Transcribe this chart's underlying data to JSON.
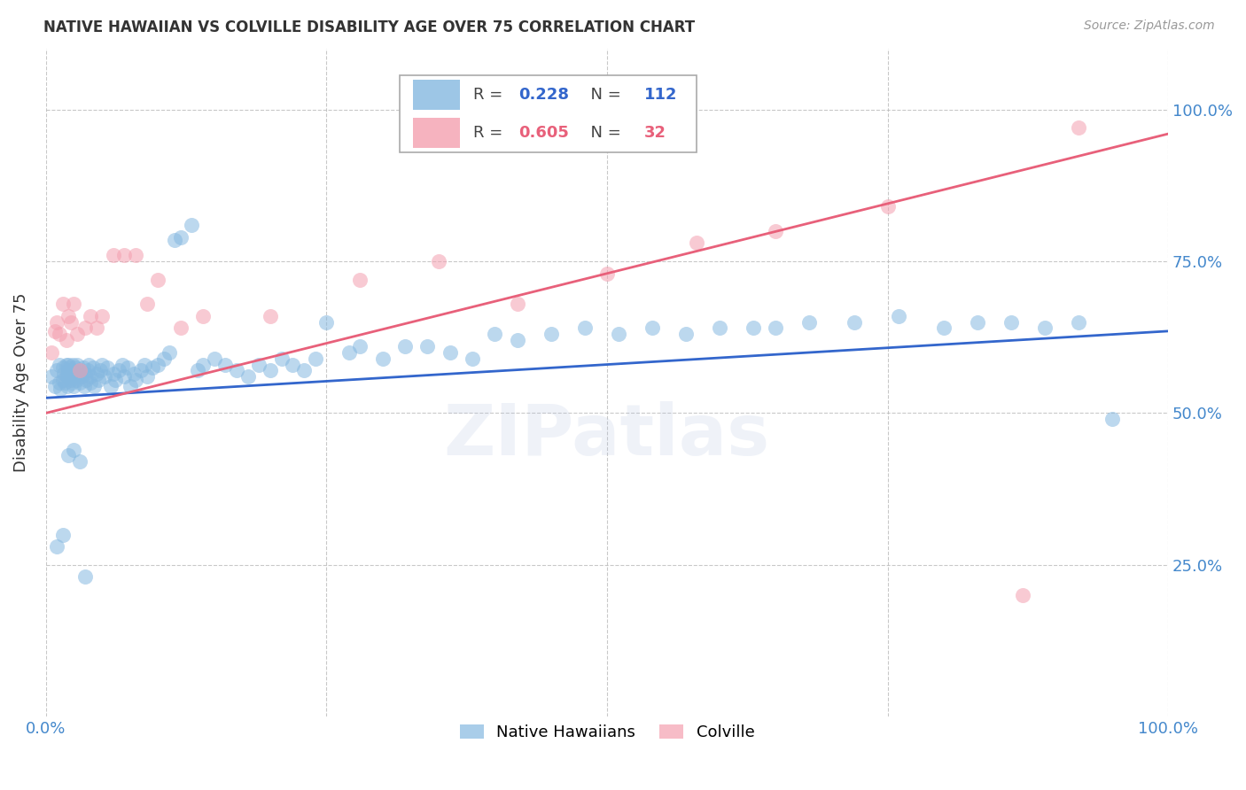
{
  "title": "NATIVE HAWAIIAN VS COLVILLE DISABILITY AGE OVER 75 CORRELATION CHART",
  "source": "Source: ZipAtlas.com",
  "ylabel": "Disability Age Over 75",
  "right_yticks": [
    "100.0%",
    "75.0%",
    "50.0%",
    "25.0%"
  ],
  "right_ytick_vals": [
    1.0,
    0.75,
    0.5,
    0.25
  ],
  "watermark": "ZIPatlas",
  "blue_R": 0.228,
  "blue_N": 112,
  "pink_R": 0.605,
  "pink_N": 32,
  "blue_color": "#85b8e0",
  "pink_color": "#f4a0b0",
  "blue_line_color": "#3366cc",
  "pink_line_color": "#e8607a",
  "title_color": "#333333",
  "axis_label_color": "#4488cc",
  "grid_color": "#bbbbbb",
  "background_color": "#ffffff",
  "blue_scatter_x": [
    0.005,
    0.008,
    0.01,
    0.012,
    0.012,
    0.013,
    0.015,
    0.015,
    0.016,
    0.017,
    0.018,
    0.018,
    0.019,
    0.02,
    0.02,
    0.02,
    0.021,
    0.022,
    0.022,
    0.023,
    0.023,
    0.024,
    0.025,
    0.025,
    0.026,
    0.027,
    0.028,
    0.028,
    0.03,
    0.03,
    0.032,
    0.033,
    0.034,
    0.035,
    0.036,
    0.037,
    0.038,
    0.04,
    0.04,
    0.042,
    0.043,
    0.045,
    0.047,
    0.048,
    0.05,
    0.052,
    0.055,
    0.058,
    0.06,
    0.062,
    0.065,
    0.068,
    0.07,
    0.073,
    0.075,
    0.078,
    0.08,
    0.085,
    0.088,
    0.09,
    0.095,
    0.1,
    0.105,
    0.11,
    0.115,
    0.12,
    0.13,
    0.135,
    0.14,
    0.15,
    0.16,
    0.17,
    0.18,
    0.19,
    0.2,
    0.21,
    0.22,
    0.23,
    0.24,
    0.25,
    0.27,
    0.28,
    0.3,
    0.32,
    0.34,
    0.36,
    0.38,
    0.4,
    0.42,
    0.45,
    0.48,
    0.51,
    0.54,
    0.57,
    0.6,
    0.63,
    0.65,
    0.68,
    0.72,
    0.76,
    0.8,
    0.83,
    0.86,
    0.89,
    0.92,
    0.95,
    0.01,
    0.015,
    0.02,
    0.025,
    0.03,
    0.035
  ],
  "blue_scatter_y": [
    0.56,
    0.545,
    0.57,
    0.58,
    0.55,
    0.54,
    0.575,
    0.555,
    0.565,
    0.55,
    0.58,
    0.56,
    0.545,
    0.57,
    0.58,
    0.56,
    0.575,
    0.555,
    0.565,
    0.57,
    0.55,
    0.58,
    0.56,
    0.545,
    0.575,
    0.555,
    0.565,
    0.58,
    0.57,
    0.55,
    0.56,
    0.575,
    0.545,
    0.565,
    0.555,
    0.57,
    0.58,
    0.56,
    0.55,
    0.575,
    0.545,
    0.565,
    0.555,
    0.57,
    0.58,
    0.56,
    0.575,
    0.545,
    0.565,
    0.555,
    0.57,
    0.58,
    0.56,
    0.575,
    0.545,
    0.565,
    0.555,
    0.57,
    0.58,
    0.56,
    0.575,
    0.58,
    0.59,
    0.6,
    0.785,
    0.79,
    0.81,
    0.57,
    0.58,
    0.59,
    0.58,
    0.57,
    0.56,
    0.58,
    0.57,
    0.59,
    0.58,
    0.57,
    0.59,
    0.65,
    0.6,
    0.61,
    0.59,
    0.61,
    0.61,
    0.6,
    0.59,
    0.63,
    0.62,
    0.63,
    0.64,
    0.63,
    0.64,
    0.63,
    0.64,
    0.64,
    0.64,
    0.65,
    0.65,
    0.66,
    0.64,
    0.65,
    0.65,
    0.64,
    0.65,
    0.49,
    0.28,
    0.3,
    0.43,
    0.44,
    0.42,
    0.23
  ],
  "pink_scatter_x": [
    0.005,
    0.008,
    0.01,
    0.012,
    0.015,
    0.018,
    0.02,
    0.022,
    0.025,
    0.028,
    0.03,
    0.035,
    0.04,
    0.045,
    0.05,
    0.06,
    0.07,
    0.08,
    0.09,
    0.1,
    0.12,
    0.14,
    0.2,
    0.28,
    0.35,
    0.42,
    0.5,
    0.58,
    0.65,
    0.75,
    0.87,
    0.92
  ],
  "pink_scatter_y": [
    0.6,
    0.635,
    0.65,
    0.63,
    0.68,
    0.62,
    0.66,
    0.65,
    0.68,
    0.63,
    0.57,
    0.64,
    0.66,
    0.64,
    0.66,
    0.76,
    0.76,
    0.76,
    0.68,
    0.72,
    0.64,
    0.66,
    0.66,
    0.72,
    0.75,
    0.68,
    0.73,
    0.78,
    0.8,
    0.84,
    0.2,
    0.97
  ],
  "xlim": [
    0.0,
    1.0
  ],
  "ylim": [
    0.0,
    1.1
  ],
  "blue_line_x0": 0.0,
  "blue_line_x1": 1.0,
  "blue_line_y0": 0.525,
  "blue_line_y1": 0.635,
  "pink_line_x0": 0.0,
  "pink_line_x1": 1.0,
  "pink_line_y0": 0.5,
  "pink_line_y1": 0.96
}
